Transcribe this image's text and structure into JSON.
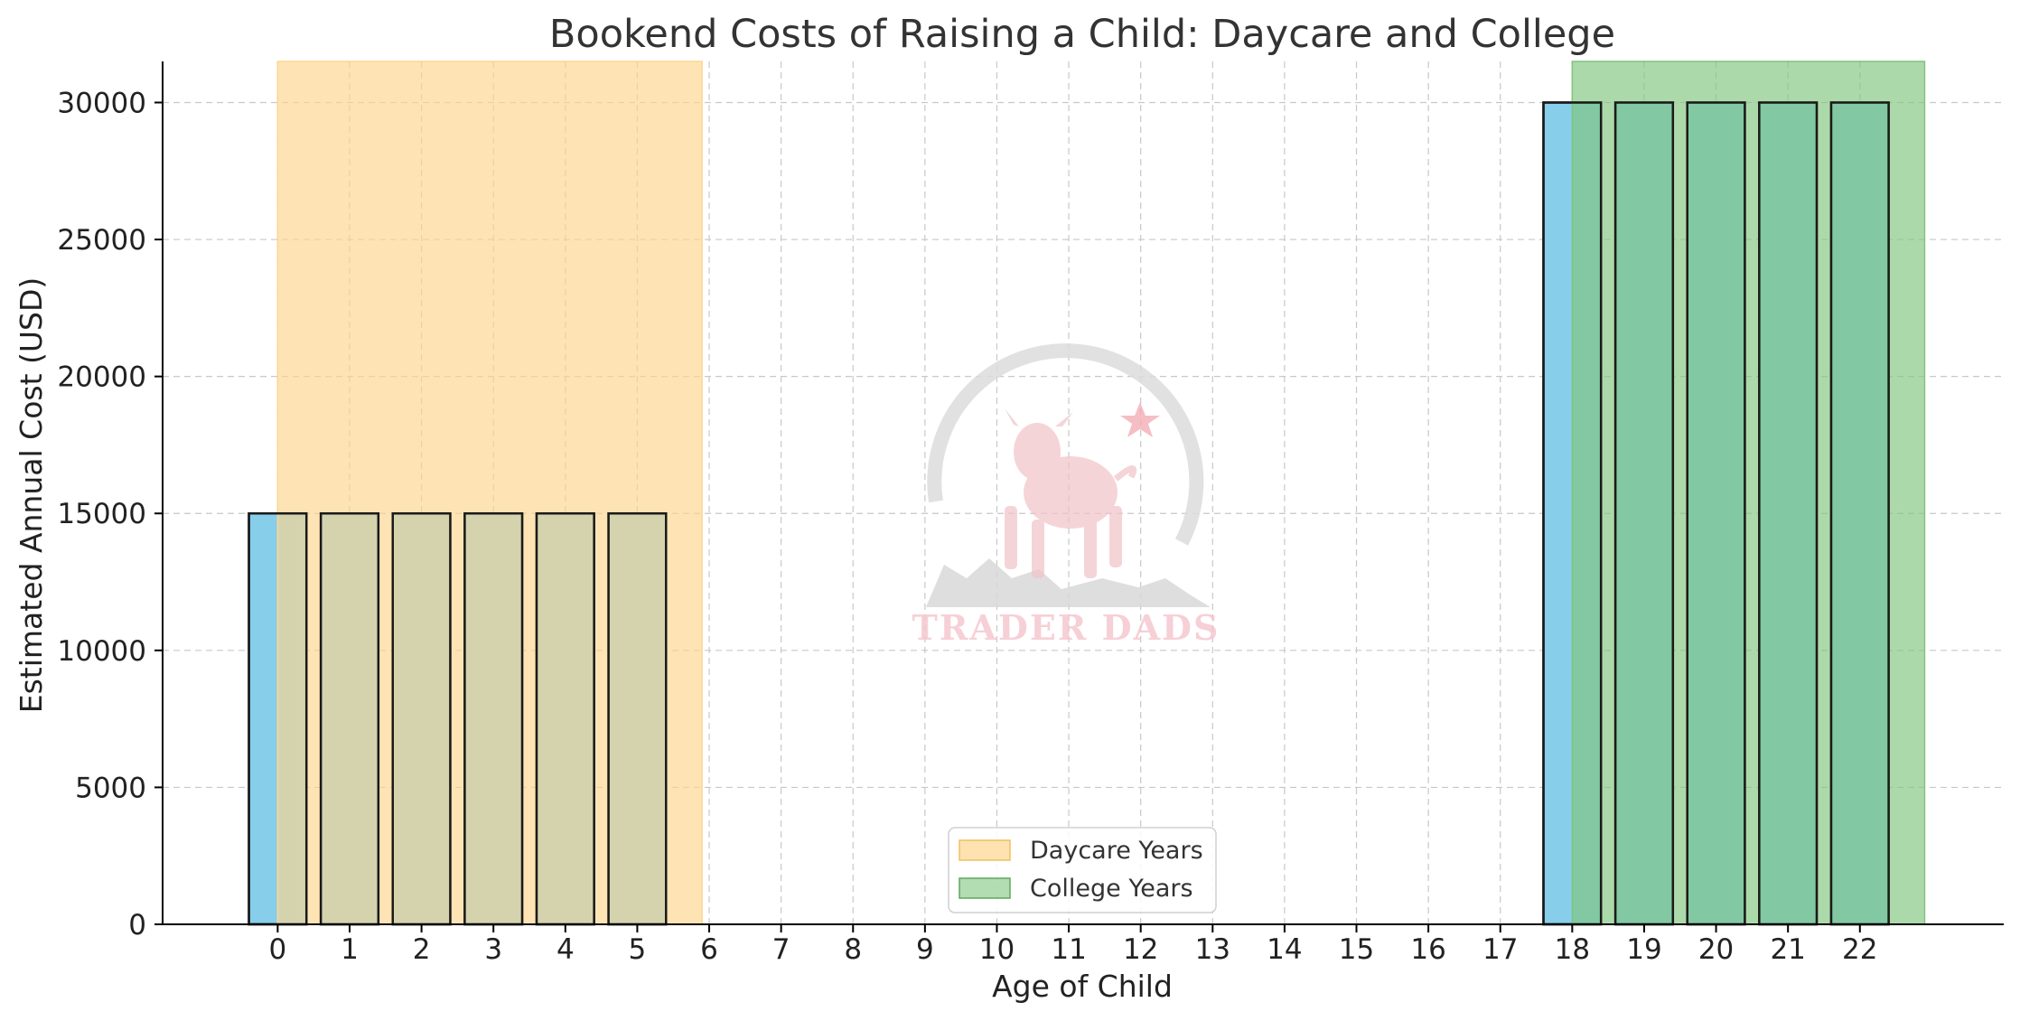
{
  "chart_data": {
    "type": "bar",
    "title": "Bookend Costs of Raising a Child: Daycare and College",
    "xlabel": "Age of Child",
    "ylabel": "Estimated Annual Cost (USD)",
    "categories": [
      "0",
      "1",
      "2",
      "3",
      "4",
      "5",
      "6",
      "7",
      "8",
      "9",
      "10",
      "11",
      "12",
      "13",
      "14",
      "15",
      "16",
      "17",
      "18",
      "19",
      "20",
      "21",
      "22"
    ],
    "values": [
      15000,
      15000,
      15000,
      15000,
      15000,
      15000,
      0,
      0,
      0,
      0,
      0,
      0,
      0,
      0,
      0,
      0,
      0,
      0,
      30000,
      30000,
      30000,
      30000,
      30000
    ],
    "yticks": [
      "0",
      "5000",
      "10000",
      "15000",
      "20000",
      "25000",
      "30000"
    ],
    "ylim": [
      0,
      31500
    ],
    "xlim": [
      -1.6,
      24
    ],
    "grid": true,
    "bar_color": "#87ceeb",
    "spans": [
      {
        "name": "Daycare Years",
        "x_start": 0,
        "x_end": 5.9,
        "color": "#fdd58e"
      },
      {
        "name": "College Years",
        "x_start": 18,
        "x_end": 22.9,
        "color": "#7fc47d"
      }
    ],
    "legend": {
      "position": "lower-center",
      "entries": [
        "Daycare Years",
        "College Years"
      ]
    }
  },
  "watermark": {
    "text": "TRADER DADS",
    "icon": "bull-icon"
  }
}
